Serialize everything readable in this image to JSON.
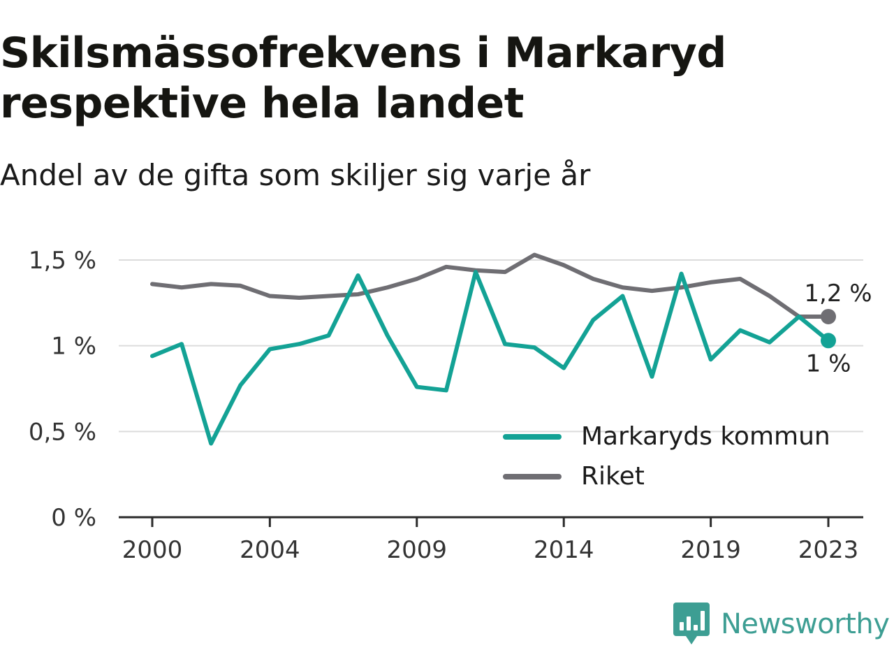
{
  "header": {
    "title": "Skilsmässofrekvens i Markaryd respektive hela landet",
    "subtitle": "Andel av de gifta som skiljer sig varje år"
  },
  "brand": {
    "name": "Newsworthy",
    "logo_icon": "newsworthy-chart-bubble-icon",
    "color": "#3d9e93"
  },
  "chart_data": {
    "type": "line",
    "x": [
      2000,
      2001,
      2002,
      2003,
      2004,
      2005,
      2006,
      2007,
      2008,
      2009,
      2010,
      2011,
      2012,
      2013,
      2014,
      2015,
      2016,
      2017,
      2018,
      2019,
      2020,
      2021,
      2022,
      2023
    ],
    "x_tick_values": [
      2000,
      2004,
      2009,
      2014,
      2019,
      2023
    ],
    "x_tick_labels": [
      "2000",
      "2004",
      "2009",
      "2014",
      "2019",
      "2023"
    ],
    "ylim": [
      0,
      1.5
    ],
    "y_tick_values": [
      0,
      0.5,
      1,
      1.5
    ],
    "y_tick_labels": [
      "0 %",
      "0,5 %",
      "1 %",
      "1,5 %"
    ],
    "grid": true,
    "legend_position": "bottom-right",
    "series": [
      {
        "name": "Markaryds kommun",
        "color": "#13a295",
        "values": [
          0.94,
          1.01,
          0.43,
          0.77,
          0.98,
          1.01,
          1.06,
          1.41,
          1.06,
          0.76,
          0.74,
          1.43,
          1.01,
          0.99,
          0.87,
          1.15,
          1.29,
          0.82,
          1.42,
          0.92,
          1.09,
          1.02,
          1.17,
          1.03
        ],
        "end_label": "1 %"
      },
      {
        "name": "Riket",
        "color": "#6f6e73",
        "values": [
          1.36,
          1.34,
          1.36,
          1.35,
          1.29,
          1.28,
          1.29,
          1.3,
          1.34,
          1.39,
          1.46,
          1.44,
          1.43,
          1.53,
          1.47,
          1.39,
          1.34,
          1.32,
          1.34,
          1.37,
          1.39,
          1.29,
          1.17,
          1.17
        ],
        "end_label": "1,2 %"
      }
    ]
  }
}
